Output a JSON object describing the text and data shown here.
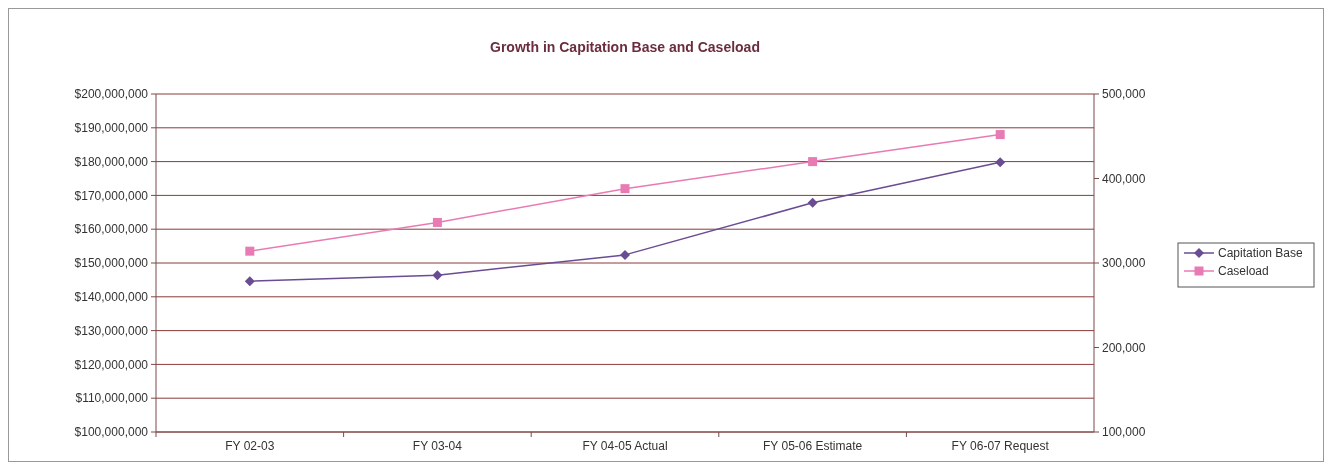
{
  "chart_data": {
    "type": "line",
    "title": "Growth in Capitation Base and Caseload",
    "categories": [
      "FY 02-03",
      "FY 03-04",
      "FY 04-05 Actual",
      "FY 05-06 Estimate",
      "FY 06-07 Request"
    ],
    "series": [
      {
        "name": "Capitation Base",
        "color": "#6a4c93",
        "marker": "diamond",
        "values": [
          144600000,
          146400000,
          152400000,
          167800000,
          179800000
        ]
      },
      {
        "name": "Caseload",
        "color": "#e87bb4",
        "marker": "square",
        "axis": "y2",
        "values": [
          314000,
          348000,
          388000,
          420000,
          452000
        ]
      }
    ],
    "ylim": [
      100000000,
      200000000
    ],
    "yticks": [
      {
        "value": 100000000,
        "label": "$100,000,000"
      },
      {
        "value": 110000000,
        "label": "$110,000,000"
      },
      {
        "value": 120000000,
        "label": "$120,000,000"
      },
      {
        "value": 130000000,
        "label": "$130,000,000"
      },
      {
        "value": 140000000,
        "label": "$140,000,000"
      },
      {
        "value": 150000000,
        "label": "$150,000,000"
      },
      {
        "value": 160000000,
        "label": "$160,000,000"
      },
      {
        "value": 170000000,
        "label": "$170,000,000"
      },
      {
        "value": 180000000,
        "label": "$180,000,000"
      },
      {
        "value": 190000000,
        "label": "$190,000,000"
      },
      {
        "value": 200000000,
        "label": "$200,000,000"
      }
    ],
    "y2lim": [
      100000,
      500000
    ],
    "y2ticks": [
      {
        "value": 100000,
        "label": "100,000"
      },
      {
        "value": 200000,
        "label": "200,000"
      },
      {
        "value": 300000,
        "label": "300,000"
      },
      {
        "value": 400000,
        "label": "400,000"
      },
      {
        "value": 500000,
        "label": "500,000"
      }
    ],
    "grid": "y",
    "legend": "right",
    "line_style": "solid"
  }
}
